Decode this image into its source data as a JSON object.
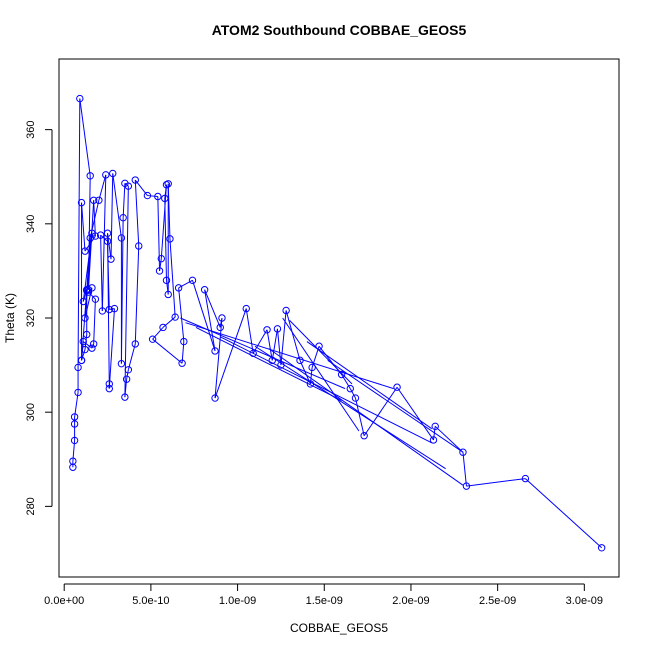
{
  "chart_data": {
    "type": "scatter",
    "title": "ATOM2 Southbound COBBAE_GEOS5",
    "xlabel": "COBBAE_GEOS5",
    "ylabel": "Theta (K)",
    "xlim": [
      -3e-11,
      3.2e-09
    ],
    "ylim": [
      265,
      375
    ],
    "xticks": [
      0,
      5e-10,
      1e-09,
      1.5e-09,
      2e-09,
      2.5e-09,
      3e-09
    ],
    "xtick_labels": [
      "0.0e+00",
      "5.0e-10",
      "1.0e-09",
      "1.5e-09",
      "2.0e-09",
      "2.5e-09",
      "3.0e-09"
    ],
    "yticks": [
      280,
      300,
      320,
      340,
      360
    ],
    "ytick_labels": [
      "280",
      "300",
      "320",
      "340",
      "360"
    ],
    "grid": false,
    "color": "#0000ff",
    "series": [
      {
        "points": [
          [
            5e-11,
            288.3
          ],
          [
            5e-11,
            289.6
          ],
          [
            6e-11,
            294.0
          ],
          [
            6e-11,
            297.5
          ],
          [
            6e-11,
            299.0
          ],
          [
            8e-11,
            304.2
          ],
          [
            8e-11,
            309.5
          ],
          [
            9e-11,
            366.6
          ],
          [
            1.5e-10,
            350.2
          ],
          [
            1.4e-10,
            326.0
          ],
          [
            1.7e-10,
            345.0
          ],
          [
            1.8e-10,
            337.4
          ],
          [
            1.2e-10,
            334.2
          ],
          [
            1e-10,
            344.5
          ],
          [
            1e-10,
            311.0
          ],
          [
            1.3e-10,
            326.0
          ],
          [
            1.1e-10,
            323.5
          ],
          [
            1.6e-10,
            338.0
          ],
          [
            1.2e-10,
            320.0
          ],
          [
            1.6e-10,
            326.4
          ],
          [
            1.4e-10,
            325.5
          ],
          [
            1.8e-10,
            324.0
          ],
          [
            1.7e-10,
            314.5
          ],
          [
            1.6e-10,
            313.6
          ],
          [
            1.1e-10,
            315.0
          ],
          [
            1e-10,
            311.0
          ],
          [
            1.2e-10,
            313.3
          ],
          [
            1.3e-10,
            316.5
          ],
          [
            1.3e-10,
            325.8
          ],
          [
            1.5e-10,
            337.0
          ],
          [
            2e-10,
            345.0
          ],
          [
            2.4e-10,
            350.4
          ],
          [
            2.2e-10,
            321.5
          ],
          [
            2.1e-10,
            337.6
          ],
          [
            2.5e-10,
            336.3
          ],
          [
            2.6e-10,
            321.8
          ],
          [
            2.9e-10,
            322.0
          ],
          [
            2.6e-10,
            305.0
          ],
          [
            2.6e-10,
            306.0
          ],
          [
            2.5e-10,
            338.0
          ],
          [
            2.7e-10,
            332.5
          ],
          [
            2.8e-10,
            350.7
          ],
          [
            3.3e-10,
            337.0
          ],
          [
            3.3e-10,
            310.3
          ],
          [
            3.4e-10,
            341.3
          ],
          [
            3.5e-10,
            348.6
          ],
          [
            3.7e-10,
            348.0
          ],
          [
            3.5e-10,
            303.2
          ],
          [
            3.6e-10,
            307.0
          ],
          [
            3.7e-10,
            309.0
          ],
          [
            4.1e-10,
            314.5
          ],
          [
            4.3e-10,
            335.3
          ],
          [
            4.1e-10,
            349.3
          ],
          [
            4.8e-10,
            346.0
          ],
          [
            5.4e-10,
            345.8
          ],
          [
            5.5e-10,
            330.0
          ],
          [
            5.6e-10,
            332.6
          ],
          [
            5.9e-10,
            348.3
          ],
          [
            5.8e-10,
            345.4
          ],
          [
            5.9e-10,
            328.0
          ],
          [
            6e-10,
            325.0
          ],
          [
            6e-10,
            348.5
          ],
          [
            6.1e-10,
            336.8
          ],
          [
            6.4e-10,
            320.2
          ],
          [
            5.7e-10,
            318.0
          ],
          [
            5.1e-10,
            315.5
          ],
          [
            6.8e-10,
            310.4
          ],
          [
            6.9e-10,
            315.0
          ],
          [
            6.6e-10,
            326.4
          ],
          [
            7.4e-10,
            328.0
          ],
          [
            8.7e-10,
            313.0
          ],
          [
            8.1e-10,
            326.0
          ],
          [
            9e-10,
            318.0
          ],
          [
            9.1e-10,
            320.0
          ],
          [
            8.7e-10,
            303.0
          ],
          [
            1.05e-09,
            322.0
          ],
          [
            1.09e-09,
            312.5
          ],
          [
            1.17e-09,
            317.5
          ],
          [
            1.2e-09,
            311.0
          ],
          [
            1.23e-09,
            317.7
          ],
          [
            1.25e-09,
            310.0
          ],
          [
            1.28e-09,
            321.6
          ],
          [
            1.36e-09,
            311.0
          ],
          [
            1.42e-09,
            306.0
          ],
          [
            1.43e-09,
            309.5
          ],
          [
            1.47e-09,
            314.0
          ],
          [
            1.6e-09,
            308.0
          ],
          [
            1.65e-09,
            305.0
          ],
          [
            1.68e-09,
            303.0
          ],
          [
            1.73e-09,
            295.0
          ],
          [
            1.92e-09,
            305.3
          ],
          [
            2.13e-09,
            294.1
          ],
          [
            2.14e-09,
            297.0
          ],
          [
            2.3e-09,
            291.5
          ],
          [
            2.32e-09,
            284.3
          ],
          [
            2.66e-09,
            285.9
          ],
          [
            3.1e-09,
            271.2
          ]
        ],
        "extra_segments": [
          [
            [
              6.7e-10,
              320.0
            ],
            [
              1.62e-09,
              305.0
            ]
          ],
          [
            [
              7e-10,
              319.0
            ],
            [
              1.9e-09,
              305.0
            ]
          ],
          [
            [
              7.6e-10,
              318.0
            ],
            [
              1.6e-09,
              302.5
            ]
          ],
          [
            [
              9e-10,
              316.0
            ],
            [
              2.12e-09,
              293.5
            ]
          ],
          [
            [
              1.1e-09,
              314.0
            ],
            [
              2.2e-09,
              288.0
            ]
          ],
          [
            [
              1.18e-09,
              313.5
            ],
            [
              2.3e-09,
              284.5
            ]
          ],
          [
            [
              1.26e-09,
              320.0
            ],
            [
              1.7e-09,
              296.0
            ]
          ],
          [
            [
              1.52e-09,
              311.0
            ],
            [
              2.3e-09,
              291.5
            ]
          ],
          [
            [
              1.4e-09,
              315.0
            ],
            [
              2.12e-09,
              296.5
            ]
          ],
          [
            [
              1.3e-09,
              319.5
            ],
            [
              1.66e-09,
              306.0
            ]
          ]
        ]
      }
    ]
  }
}
